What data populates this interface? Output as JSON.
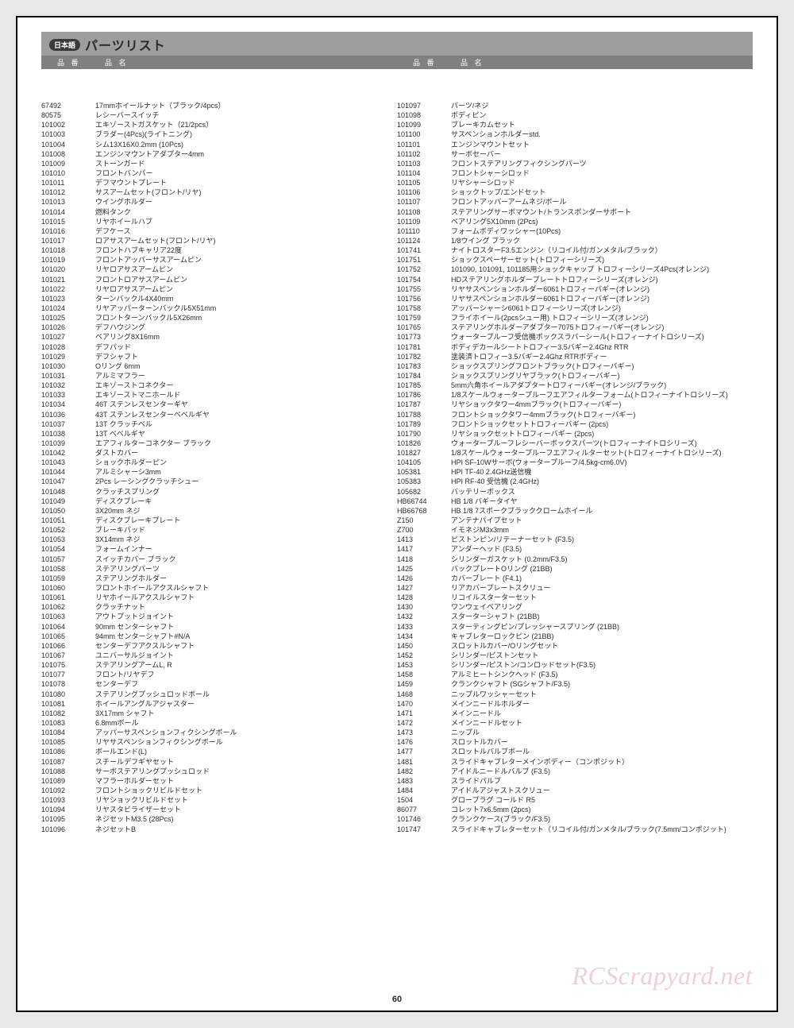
{
  "header": {
    "lang_badge": "日本語",
    "title": "パーツリスト",
    "col_num": "品 番",
    "col_name": "品 名"
  },
  "page_number": "60",
  "watermark": "RCScrapyard.net",
  "left_column": [
    {
      "num": "67492",
      "name": "17mmホイールナット（ブラック/4pcs）"
    },
    {
      "num": "80575",
      "name": "レシーバースイッチ"
    },
    {
      "num": "101002",
      "name": "エキゾーストガスケット（21/2pcs）"
    },
    {
      "num": "101003",
      "name": "ブラダー(4Pcs)(ライトニング)"
    },
    {
      "num": "101004",
      "name": "シム13X16X0.2mm (10Pcs)"
    },
    {
      "num": "101008",
      "name": "エンジンマウントアダプター4mm"
    },
    {
      "num": "101009",
      "name": "ストーンガード"
    },
    {
      "num": "101010",
      "name": "フロントバンパー"
    },
    {
      "num": "101011",
      "name": "デフマウントプレート"
    },
    {
      "num": "101012",
      "name": "サスアームセット(フロント/リヤ)"
    },
    {
      "num": "101013",
      "name": "ウイングホルダー"
    },
    {
      "num": "101014",
      "name": "燃料タンク"
    },
    {
      "num": "101015",
      "name": "リヤホイールハブ"
    },
    {
      "num": "101016",
      "name": "デフケース"
    },
    {
      "num": "101017",
      "name": "ロアサスアームセット(フロント/リヤ)"
    },
    {
      "num": "101018",
      "name": "フロントハブキャリア22度"
    },
    {
      "num": "101019",
      "name": "フロントアッパーサスアームピン"
    },
    {
      "num": "101020",
      "name": "リヤロアサスアームピン"
    },
    {
      "num": "101021",
      "name": "フロントロアサスアームピン"
    },
    {
      "num": "101022",
      "name": "リヤロアサスアームピン"
    },
    {
      "num": "101023",
      "name": "ターンバックル4X40mm"
    },
    {
      "num": "101024",
      "name": "リヤアッパーターンバックル5X51mm"
    },
    {
      "num": "101025",
      "name": "フロントターンバックル5X26mm"
    },
    {
      "num": "101026",
      "name": "デフハウジング"
    },
    {
      "num": "101027",
      "name": "ベアリング8X16mm"
    },
    {
      "num": "101028",
      "name": "デフパッド"
    },
    {
      "num": "101029",
      "name": "デフシャフト"
    },
    {
      "num": "101030",
      "name": "Oリング 6mm"
    },
    {
      "num": "101031",
      "name": "アルミマフラー"
    },
    {
      "num": "101032",
      "name": "エキゾーストコネクター"
    },
    {
      "num": "101033",
      "name": "エキゾーストマニホールド"
    },
    {
      "num": "101034",
      "name": "46T ステンレスセンターギヤ"
    },
    {
      "num": "101036",
      "name": "43T ステンレスセンターベベルギヤ"
    },
    {
      "num": "101037",
      "name": "13T クラッチベル"
    },
    {
      "num": "101038",
      "name": "13T ベベルギヤ"
    },
    {
      "num": "101039",
      "name": "エアフィルターコネクター ブラック"
    },
    {
      "num": "101042",
      "name": "ダストカバー"
    },
    {
      "num": "101043",
      "name": "ショックホルダーピン"
    },
    {
      "num": "101044",
      "name": "アルミシャーシ3mm"
    },
    {
      "num": "101047",
      "name": "2Pcs レーシングクラッチシュー"
    },
    {
      "num": "101048",
      "name": "クラッチスプリング"
    },
    {
      "num": "101049",
      "name": "ディスクブレーキ"
    },
    {
      "num": "101050",
      "name": "3X20mm ネジ"
    },
    {
      "num": "101051",
      "name": "ディスクブレーキプレート"
    },
    {
      "num": "101052",
      "name": "ブレーキパッド"
    },
    {
      "num": "101053",
      "name": "3X14mm ネジ"
    },
    {
      "num": "101054",
      "name": "フォームインナー"
    },
    {
      "num": "101057",
      "name": "スイッチカバー ブラック"
    },
    {
      "num": "101058",
      "name": "ステアリングパーツ"
    },
    {
      "num": "101059",
      "name": "ステアリングホルダー"
    },
    {
      "num": "101060",
      "name": "フロントホイールアクスルシャフト"
    },
    {
      "num": "101061",
      "name": "リヤホイールアクスルシャフト"
    },
    {
      "num": "101062",
      "name": "クラッチナット"
    },
    {
      "num": "101063",
      "name": "アウトプットジョイント"
    },
    {
      "num": "101064",
      "name": "90mm センターシャフト"
    },
    {
      "num": "101065",
      "name": "94mm センターシャフト#N/A"
    },
    {
      "num": "101066",
      "name": "センターデフアクスルシャフト"
    },
    {
      "num": "101067",
      "name": "ユニバーサルジョイント"
    },
    {
      "num": "101075",
      "name": "ステアリングアームL, R"
    },
    {
      "num": "101077",
      "name": "フロント/リヤデフ"
    },
    {
      "num": "101078",
      "name": "センターデフ"
    },
    {
      "num": "101080",
      "name": "ステアリングプッシュロッドボール"
    },
    {
      "num": "101081",
      "name": "ホイールアングルアジャスター"
    },
    {
      "num": "101082",
      "name": "3X17mm シャフト"
    },
    {
      "num": "101083",
      "name": "6.8mmボール"
    },
    {
      "num": "101084",
      "name": "アッパーサスペンションフィクシングボール"
    },
    {
      "num": "101085",
      "name": "リヤサスペンションフィクシングボール"
    },
    {
      "num": "101086",
      "name": "ボールエンド(L)"
    },
    {
      "num": "101087",
      "name": "スチールデフギヤセット"
    },
    {
      "num": "101088",
      "name": "サーボステアリングプッシュロッド"
    },
    {
      "num": "101089",
      "name": "マフラーホルダーセット"
    },
    {
      "num": "101092",
      "name": "フロントショックリビルドセット"
    },
    {
      "num": "101093",
      "name": "リヤショックリビルドセット"
    },
    {
      "num": "101094",
      "name": "リヤスタビライザーセット"
    },
    {
      "num": "101095",
      "name": "ネジセットM3.5 (28Pcs)"
    },
    {
      "num": "101096",
      "name": "ネジセットB"
    }
  ],
  "right_column": [
    {
      "num": "101097",
      "name": "パーツ/ネジ"
    },
    {
      "num": "101098",
      "name": "ボディピン"
    },
    {
      "num": "101099",
      "name": "ブレーキカムセット"
    },
    {
      "num": "101100",
      "name": "サスペンションホルダーstd."
    },
    {
      "num": "101101",
      "name": "エンジンマウントセット"
    },
    {
      "num": "101102",
      "name": "サーボセーバー"
    },
    {
      "num": "101103",
      "name": "フロントステアリングフィクシングパーツ"
    },
    {
      "num": "101104",
      "name": "フロントシャーシロッド"
    },
    {
      "num": "101105",
      "name": "リヤシャーシロッド"
    },
    {
      "num": "101106",
      "name": "ショックトップ/エンドセット"
    },
    {
      "num": "101107",
      "name": "フロントアッパーアームネジ/ボール"
    },
    {
      "num": "101108",
      "name": "ステアリングサーボマウント/トランスポンダーサポート"
    },
    {
      "num": "101109",
      "name": "ベアリング5X10mm (2Pcs)"
    },
    {
      "num": "101110",
      "name": "フォームボディワッシャー(10Pcs)"
    },
    {
      "num": "101124",
      "name": "1/8ウイング ブラック"
    },
    {
      "num": "101741",
      "name": "ナイトロスターF3.5エンジン（リコイル付/ガンメタル/ブラック）"
    },
    {
      "num": "101751",
      "name": "ショックスペーサーセット(トロフィーシリーズ)"
    },
    {
      "num": "101752",
      "name": "101090, 101091, 101185用ショックキャップ トロフィーシリーズ4Pcs(オレンジ)"
    },
    {
      "num": "101754",
      "name": "HDステアリングホルダープレートトロフィーシリーズ(オレンジ)"
    },
    {
      "num": "101755",
      "name": "リヤサスペンションホルダー6061トロフィーバギー(オレンジ)"
    },
    {
      "num": "101756",
      "name": "リヤサスペンションホルダー6061トロフィーバギー(オレンジ)"
    },
    {
      "num": "101758",
      "name": "アッパーシャーシ6061トロフィーシリーズ(オレンジ)"
    },
    {
      "num": "101759",
      "name": "フライホイール(2pcsシュー用) トロフィーシリーズ(オレンジ)"
    },
    {
      "num": "101765",
      "name": "ステアリングホルダーアダプター7075トロフィーバギー(オレンジ)"
    },
    {
      "num": "101773",
      "name": "ウォータープルーフ受信機ボックスラバーシール(トロフィーナイトロシリーズ)"
    },
    {
      "num": "101781",
      "name": "ボディデカールシートトロフィー3.5バギー2.4Ghz RTR"
    },
    {
      "num": "101782",
      "name": "塗装済トロフィー3.5バギー2.4Ghz RTRボディー"
    },
    {
      "num": "101783",
      "name": "ショックスプリングフロントブラック(トロフィーバギー)"
    },
    {
      "num": "101784",
      "name": "ショックスプリングリヤブラック(トロフィーバギー)"
    },
    {
      "num": "101785",
      "name": "5mm六角ホイールアダプタートロフィーバギー(オレンジ/ブラック)"
    },
    {
      "num": "101786",
      "name": "1/8スケールウォータープルーフエアフィルターフォーム(トロフィーナイトロシリーズ)"
    },
    {
      "num": "101787",
      "name": "リヤショックタワー4mmブラック(トロフィーバギー)"
    },
    {
      "num": "101788",
      "name": "フロントショックタワー4mmブラック(トロフィーバギー)"
    },
    {
      "num": "101789",
      "name": "フロントショックセットトロフィーバギー (2pcs)"
    },
    {
      "num": "101790",
      "name": "リヤショックセットトロフィーバギー (2pcs)"
    },
    {
      "num": "101826",
      "name": "ウォータープルーフレシーバーボックスパーツ(トロフィーナイトロシリーズ)"
    },
    {
      "num": "101827",
      "name": "1/8スケールウォータープルーフエアフィルターセット(トロフィーナイトロシリーズ)"
    },
    {
      "num": "104105",
      "name": "HPI SF-10Wサーボ(ウォータープルーフ/4.5kg-cm6.0V)"
    },
    {
      "num": "105381",
      "name": "HPI TF-40 2.4GHz送信機"
    },
    {
      "num": "105383",
      "name": "HPI RF-40 受信機 (2.4GHz)"
    },
    {
      "num": "105682",
      "name": "バッテリーボックス"
    },
    {
      "num": "HB66744",
      "name": "HB 1/8 バギータイヤ"
    },
    {
      "num": "HB66768",
      "name": "HB 1/8 7スポークブラッククロームホイール"
    },
    {
      "num": "Z150",
      "name": "アンテナパイプセット"
    },
    {
      "num": "Z700",
      "name": "イモネジM3x3mm"
    },
    {
      "num": "1413",
      "name": "ピストンピン/リテーナーセット (F3.5)"
    },
    {
      "num": "1417",
      "name": "アンダーヘッド (F3.5)"
    },
    {
      "num": "1418",
      "name": "シリンダーガスケット (0.2mm/F3.5)"
    },
    {
      "num": "1425",
      "name": "バックプレートOリング (21BB)"
    },
    {
      "num": "1426",
      "name": "カバープレート (F4.1)"
    },
    {
      "num": "1427",
      "name": "リアカバープレートスクリュー"
    },
    {
      "num": "1428",
      "name": "リコイルスターターセット"
    },
    {
      "num": "1430",
      "name": "ワンウェイベアリング"
    },
    {
      "num": "1432",
      "name": "スターターシャフト (21BB)"
    },
    {
      "num": "1433",
      "name": "スターティングピン/プレッシャースプリング (21BB)"
    },
    {
      "num": "1434",
      "name": "キャブレターロックピン (21BB)"
    },
    {
      "num": "1450",
      "name": "スロットルカバー/Oリングセット"
    },
    {
      "num": "1452",
      "name": "シリンダー/ピストンセット"
    },
    {
      "num": "1453",
      "name": "シリンダー/ピストン/コンロッドセット(F3.5)"
    },
    {
      "num": "1458",
      "name": "アルミヒートシンクヘッド (F3.5)"
    },
    {
      "num": "1459",
      "name": "クランクシャフト (SGシャフト/F3.5)"
    },
    {
      "num": "1468",
      "name": "ニップルワッシャーセット"
    },
    {
      "num": "1470",
      "name": "メインニードルホルダー"
    },
    {
      "num": "1471",
      "name": "メインニードル"
    },
    {
      "num": "1472",
      "name": "メインニードルセット"
    },
    {
      "num": "1473",
      "name": "ニップル"
    },
    {
      "num": "1476",
      "name": "スロットルカバー"
    },
    {
      "num": "1477",
      "name": "スロットルバルブボール"
    },
    {
      "num": "1481",
      "name": "スライドキャブレターメインボディー（コンポジット）"
    },
    {
      "num": "1482",
      "name": "アイドルニードルバルブ (F3.5)"
    },
    {
      "num": "1483",
      "name": "スライドバルブ"
    },
    {
      "num": "1484",
      "name": "アイドルアジャストスクリュー"
    },
    {
      "num": "1504",
      "name": "グロープラグ コールド R5"
    },
    {
      "num": "86077",
      "name": "コレット7x6.5mm (2pcs)"
    },
    {
      "num": "101746",
      "name": "クランクケース(ブラック/F3.5)"
    },
    {
      "num": "101747",
      "name": "スライドキャブレターセット（リコイル付/ガンメタル/ブラック(7.5mm/コンポジット)"
    }
  ]
}
